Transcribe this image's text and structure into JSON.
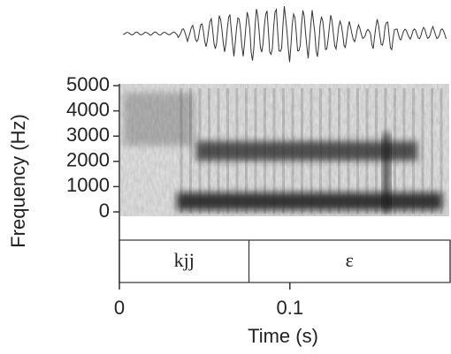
{
  "chart_data": {
    "type": "spectrogram",
    "xlabel": "Time (s)",
    "ylabel": "Frequency (Hz)",
    "xlim": [
      0,
      0.194
    ],
    "xticks": [
      0,
      0.1
    ],
    "ylim": [
      0,
      5000
    ],
    "yticks": [
      0,
      1000,
      2000,
      3000,
      4000,
      5000
    ],
    "segments": [
      {
        "label": "kjj",
        "start": 0,
        "end": 0.076
      },
      {
        "label": "ɛ",
        "start": 0.076,
        "end": 0.194
      }
    ]
  }
}
